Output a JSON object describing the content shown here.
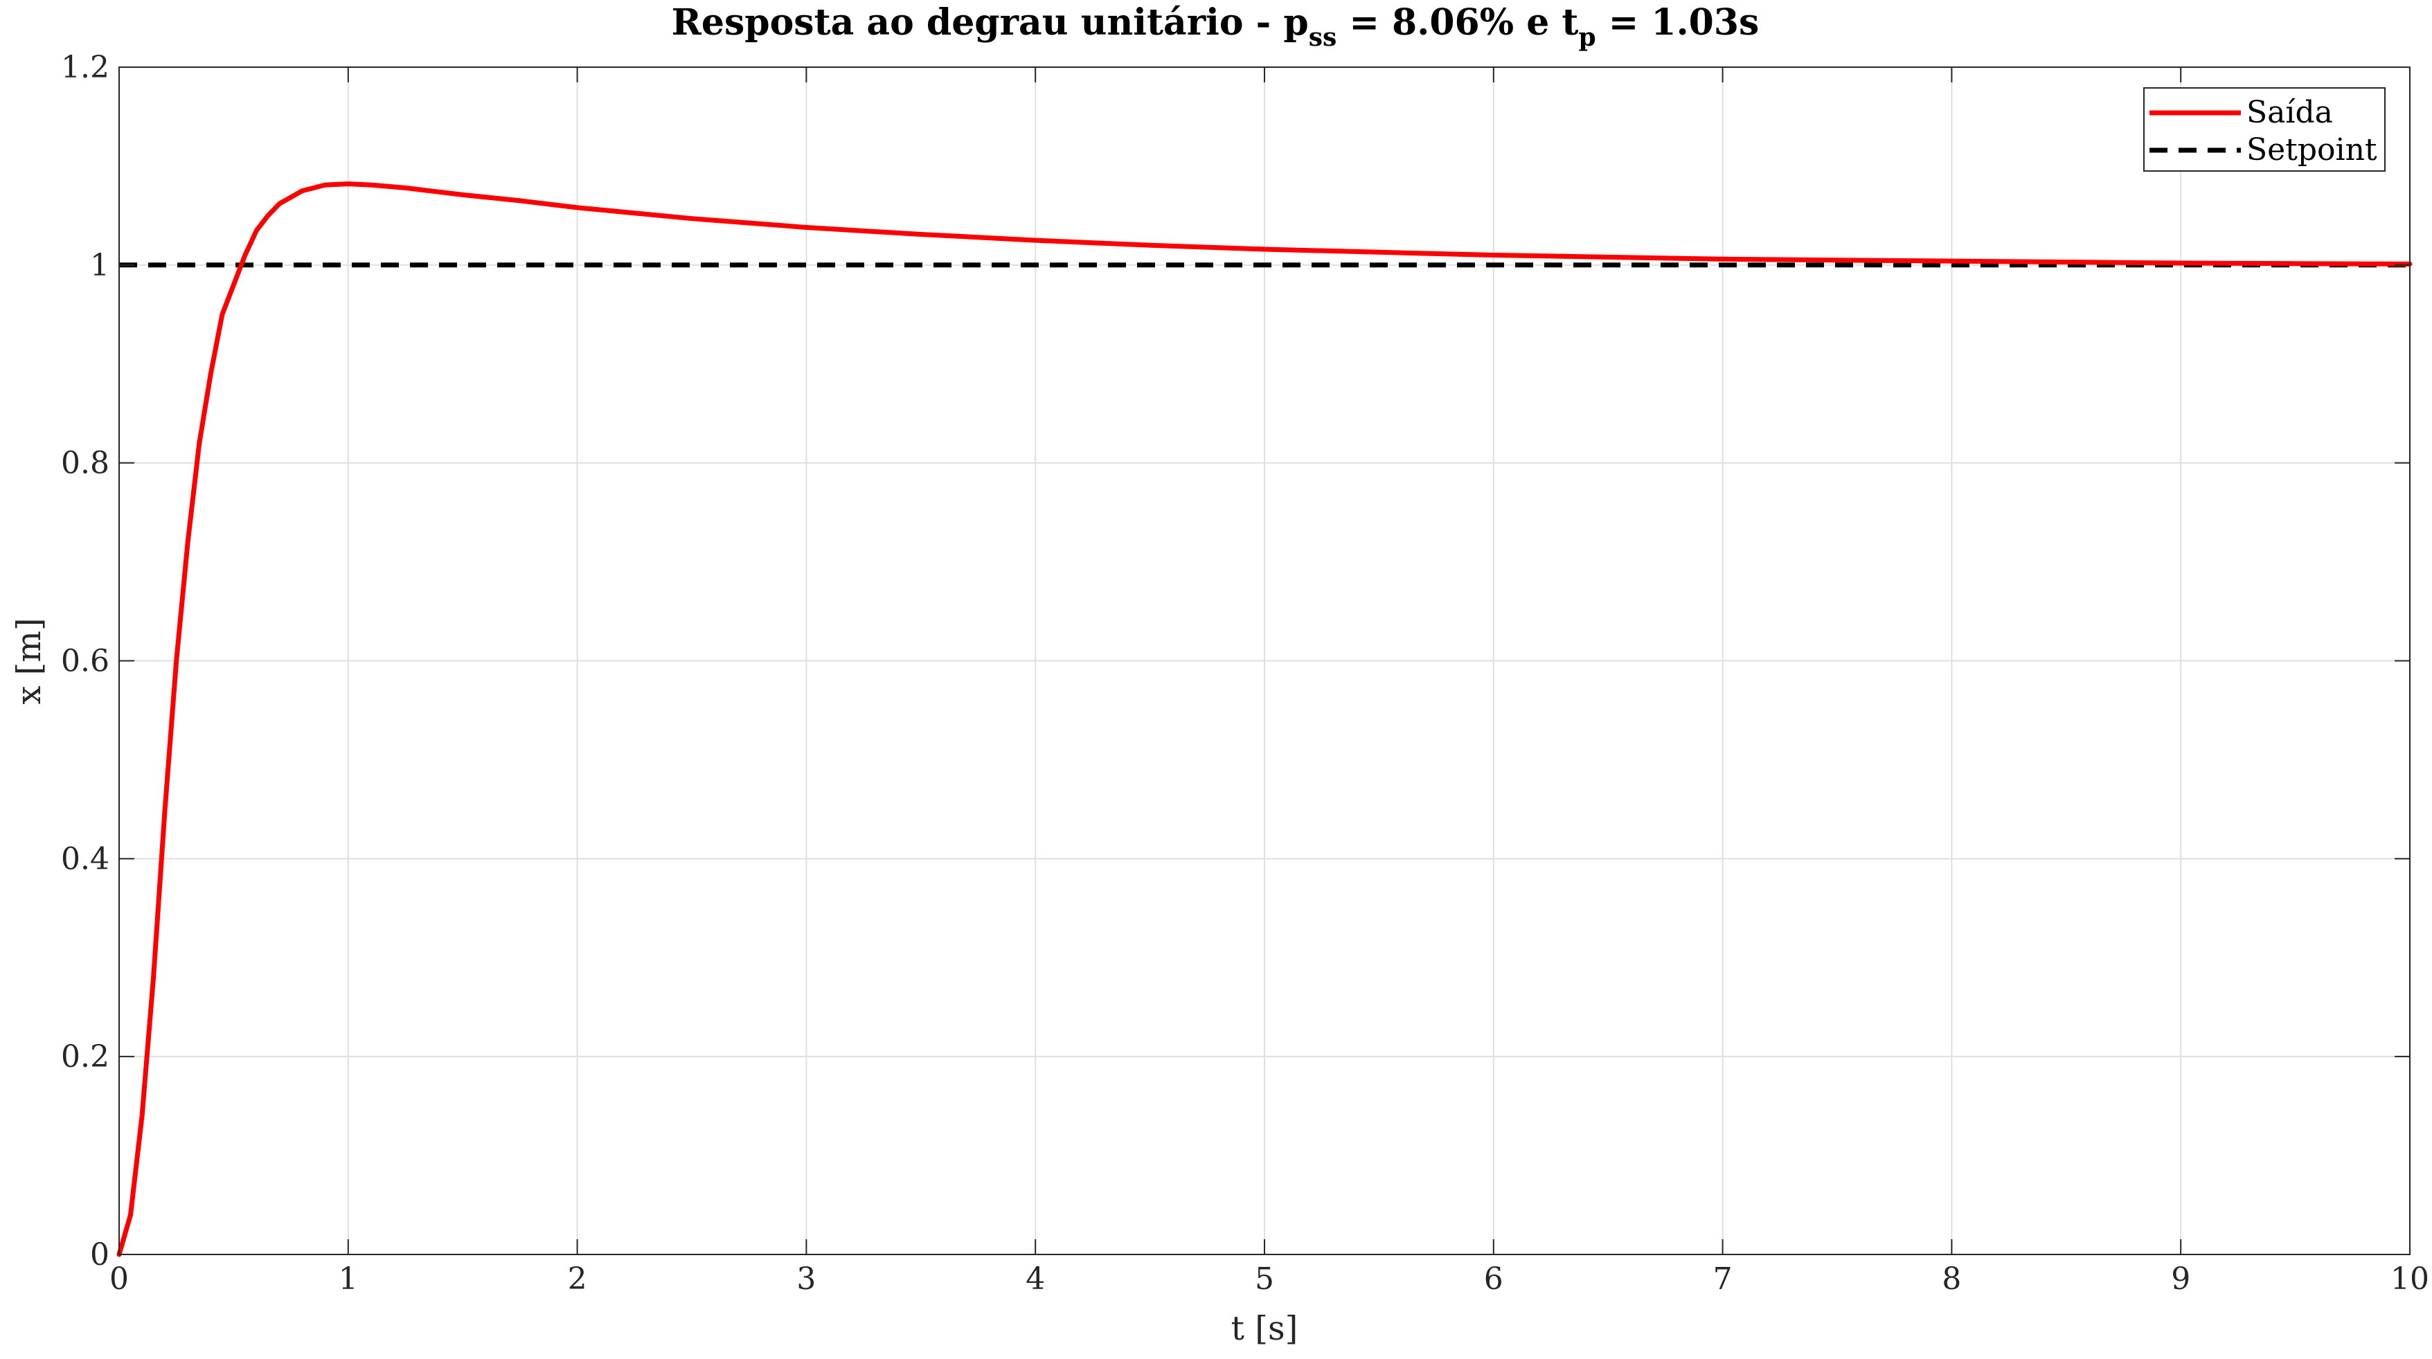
{
  "chart_data": {
    "type": "line",
    "title": {
      "prefix": "Resposta ao degrau unitário - p",
      "sub1": "ss",
      "middle": " = 8.06% e t",
      "sub2": "p",
      "suffix": " = 1.03s"
    },
    "xlabel": "t [s]",
    "ylabel": "x [m]",
    "xlim": [
      0,
      10
    ],
    "ylim": [
      0,
      1.2
    ],
    "xticks": [
      0,
      1,
      2,
      3,
      4,
      5,
      6,
      7,
      8,
      9,
      10
    ],
    "xtick_labels": [
      "0",
      "1",
      "2",
      "3",
      "4",
      "5",
      "6",
      "7",
      "8",
      "9",
      "10"
    ],
    "yticks": [
      0,
      0.2,
      0.4,
      0.6,
      0.8,
      1,
      1.2
    ],
    "ytick_labels": [
      "0",
      "0.2",
      "0.4",
      "0.6",
      "0.8",
      "1",
      "1.2"
    ],
    "grid": true,
    "legend_position": "top-right",
    "series": [
      {
        "name": "Saída",
        "color": "#ff0000",
        "style": "solid",
        "x": [
          0,
          0.05,
          0.1,
          0.15,
          0.2,
          0.25,
          0.3,
          0.35,
          0.4,
          0.45,
          0.5,
          0.55,
          0.6,
          0.65,
          0.7,
          0.8,
          0.9,
          1.0,
          1.1,
          1.25,
          1.5,
          1.75,
          2.0,
          2.5,
          3.0,
          3.5,
          4.0,
          4.5,
          5.0,
          5.5,
          6.0,
          6.5,
          7.0,
          7.5,
          8.0,
          8.5,
          9.0,
          9.5,
          10.0
        ],
        "y": [
          0,
          0.04,
          0.14,
          0.28,
          0.45,
          0.6,
          0.72,
          0.82,
          0.89,
          0.95,
          0.98,
          1.01,
          1.035,
          1.05,
          1.062,
          1.075,
          1.081,
          1.082,
          1.081,
          1.078,
          1.071,
          1.065,
          1.058,
          1.047,
          1.038,
          1.031,
          1.025,
          1.02,
          1.016,
          1.013,
          1.01,
          1.008,
          1.006,
          1.005,
          1.004,
          1.003,
          1.002,
          1.0015,
          1.001
        ]
      },
      {
        "name": "Setpoint",
        "color": "#000000",
        "style": "dashed",
        "x": [
          0,
          10
        ],
        "y": [
          1,
          1
        ]
      }
    ]
  }
}
